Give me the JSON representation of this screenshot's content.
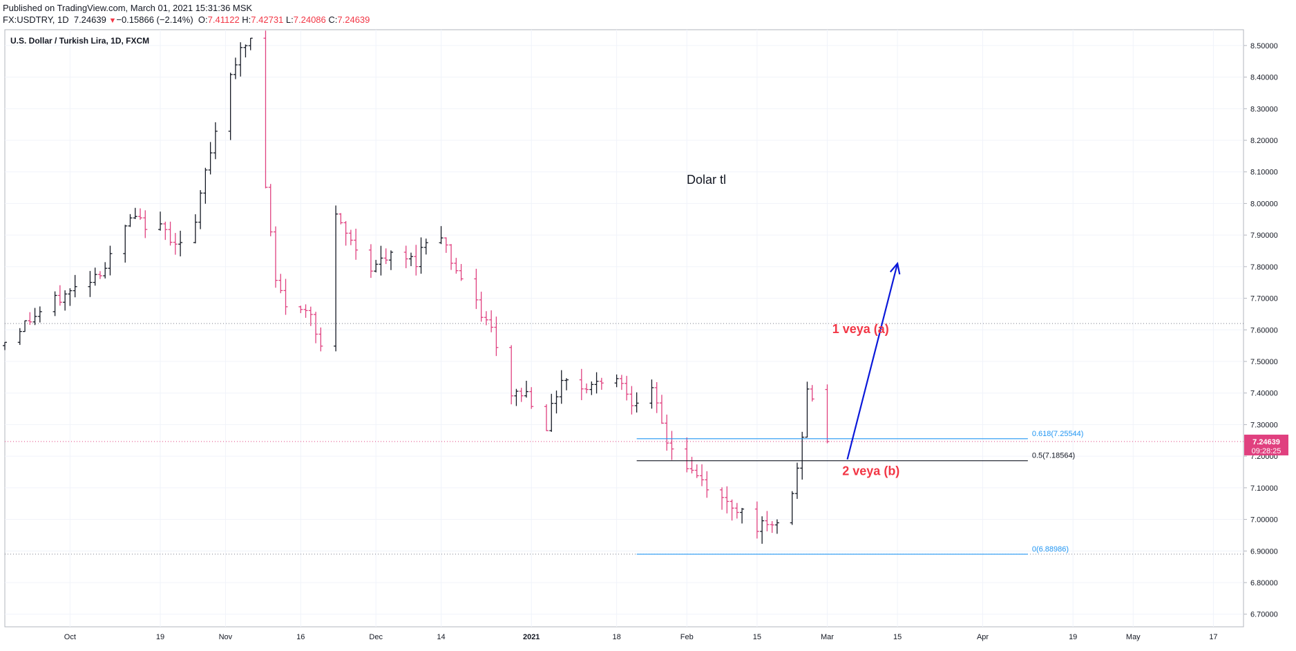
{
  "published": "Published on TradingView.com, March 01, 2021 15:31:36 MSK",
  "symbol_line": {
    "symbol": "FX:USDTRY, 1D",
    "last": "7.24639",
    "arrow": "▼",
    "change": "−0.15866 (−2.14%)",
    "o_label": "O:",
    "o": "7.41122",
    "h_label": "H:",
    "h": "7.42731",
    "l_label": "L:",
    "l": "7.24086",
    "c_label": "C:",
    "c": "7.24639"
  },
  "colors": {
    "up": "#131722",
    "down": "#e0407f",
    "accent_red": "#f23645",
    "fib_blue": "#2196f3",
    "arrow_blue": "#0a18d9"
  },
  "chart_data": {
    "type": "ohlc",
    "title": "U.S. Dollar / Turkish Lira, 1D, FXCM",
    "annotation": "Dolar tl",
    "y_axis": {
      "range": [
        6.66,
        8.55
      ],
      "ticks": [
        "6.70000",
        "6.80000",
        "6.90000",
        "7.00000",
        "7.10000",
        "7.20000",
        "7.30000",
        "7.40000",
        "7.50000",
        "7.60000",
        "7.70000",
        "7.80000",
        "7.90000",
        "8.00000",
        "8.10000",
        "8.20000",
        "8.30000",
        "8.40000",
        "8.50000"
      ]
    },
    "x_axis": {
      "start": "2020-09-18",
      "end": "2021-05-23",
      "ticks": [
        {
          "date": "2020-10-01",
          "label": "Oct",
          "bold": false
        },
        {
          "date": "2020-10-19",
          "label": "19",
          "bold": false
        },
        {
          "date": "2020-11-01",
          "label": "Nov",
          "bold": false
        },
        {
          "date": "2020-11-16",
          "label": "16",
          "bold": false
        },
        {
          "date": "2020-12-01",
          "label": "Dec",
          "bold": false
        },
        {
          "date": "2020-12-14",
          "label": "14",
          "bold": false
        },
        {
          "date": "2021-01-01",
          "label": "2021",
          "bold": true
        },
        {
          "date": "2021-01-18",
          "label": "18",
          "bold": false
        },
        {
          "date": "2021-02-01",
          "label": "Feb",
          "bold": false
        },
        {
          "date": "2021-02-15",
          "label": "15",
          "bold": false
        },
        {
          "date": "2021-03-01",
          "label": "Mar",
          "bold": false
        },
        {
          "date": "2021-03-15",
          "label": "15",
          "bold": false
        },
        {
          "date": "2021-04-01",
          "label": "Apr",
          "bold": false
        },
        {
          "date": "2021-04-19",
          "label": "19",
          "bold": false
        },
        {
          "date": "2021-05-01",
          "label": "May",
          "bold": false
        },
        {
          "date": "2021-05-17",
          "label": "17",
          "bold": false
        }
      ]
    },
    "anchors": [
      [
        "2020-09-18",
        7.55
      ],
      [
        "2020-09-23",
        7.62
      ],
      [
        "2020-09-28",
        7.68
      ],
      [
        "2020-10-02",
        7.72
      ],
      [
        "2020-10-09",
        7.8
      ],
      [
        "2020-10-14",
        7.95
      ],
      [
        "2020-10-20",
        7.92
      ],
      [
        "2020-10-26",
        7.85
      ],
      [
        "2020-10-29",
        8.1
      ],
      [
        "2020-11-01",
        8.3
      ],
      [
        "2020-11-03",
        8.42
      ],
      [
        "2020-11-05",
        8.48
      ],
      [
        "2020-11-07",
        8.52
      ],
      [
        "2020-11-10",
        8.05
      ],
      [
        "2020-11-12",
        7.75
      ],
      [
        "2020-11-15",
        7.65
      ],
      [
        "2020-11-19",
        7.66
      ],
      [
        "2020-11-21",
        7.55
      ],
      [
        "2020-11-24",
        7.95
      ],
      [
        "2020-11-27",
        7.88
      ],
      [
        "2020-12-01",
        7.8
      ],
      [
        "2020-12-05",
        7.83
      ],
      [
        "2020-12-10",
        7.82
      ],
      [
        "2020-12-14",
        7.95
      ],
      [
        "2020-12-17",
        7.82
      ],
      [
        "2020-12-21",
        7.7
      ],
      [
        "2020-12-25",
        7.6
      ],
      [
        "2020-12-28",
        7.4
      ],
      [
        "2021-01-01",
        7.4
      ],
      [
        "2021-01-05",
        7.3
      ],
      [
        "2021-01-08",
        7.45
      ],
      [
        "2021-01-12",
        7.42
      ],
      [
        "2021-01-15",
        7.43
      ],
      [
        "2021-01-18",
        7.48
      ],
      [
        "2021-01-22",
        7.38
      ],
      [
        "2021-01-26",
        7.4
      ],
      [
        "2021-01-29",
        7.25
      ],
      [
        "2021-02-01",
        7.18
      ],
      [
        "2021-02-05",
        7.12
      ],
      [
        "2021-02-09",
        7.06
      ],
      [
        "2021-02-13",
        7.03
      ],
      [
        "2021-02-16",
        6.98
      ],
      [
        "2021-02-19",
        6.97
      ],
      [
        "2021-02-22",
        7.02
      ],
      [
        "2021-02-24",
        7.15
      ],
      [
        "2021-02-26",
        7.4
      ],
      [
        "2021-02-28",
        7.38
      ],
      [
        "2021-03-01",
        7.25
      ]
    ],
    "last_day": "2021-03-01",
    "last": {
      "o": 7.41122,
      "h": 7.42731,
      "l": 7.24086,
      "c": 7.24639
    },
    "last_price_label": "7.24639",
    "countdown": "09:28:25",
    "horizontal_lines": [
      7.62,
      7.24639,
      6.88986
    ],
    "fibonacci": {
      "x_start": "2021-01-22",
      "x_end": "2021-04-10",
      "levels": [
        {
          "ratio": "0.618",
          "price": 7.25544,
          "label": "0.618(7.25544)",
          "color": "#2196f3"
        },
        {
          "ratio": "0.5",
          "price": 7.18564,
          "label": "0.5(7.18564)",
          "color": "#131722"
        },
        {
          "ratio": "0",
          "price": 6.88986,
          "label": "0(6.88986)",
          "color": "#2196f3"
        }
      ]
    },
    "wave_labels": [
      {
        "text": "1 veya (a)",
        "date": "2021-03-02",
        "price": 7.59
      },
      {
        "text": "2 veya (b)",
        "date": "2021-03-04",
        "price": 7.14
      }
    ],
    "arrow": {
      "from": [
        "2021-03-05",
        7.19
      ],
      "to": [
        "2021-03-15",
        7.81
      ]
    }
  }
}
